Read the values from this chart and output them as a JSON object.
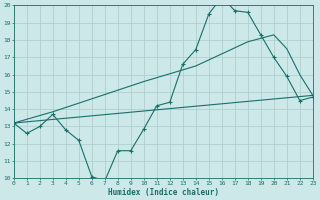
{
  "xlabel": "Humidex (Indice chaleur)",
  "bg_color": "#cce8e8",
  "grid_color": "#aacccc",
  "line_color": "#1a6e6a",
  "xmin": 0,
  "xmax": 23,
  "ymin": 10,
  "ymax": 20,
  "line1_x": [
    0,
    1,
    2,
    3,
    4,
    5,
    6,
    7,
    8,
    9,
    10,
    11,
    12,
    13,
    14,
    15,
    16,
    17,
    18,
    19,
    20,
    21,
    22,
    23
  ],
  "line1_y": [
    13.2,
    12.6,
    13.0,
    13.7,
    12.8,
    12.2,
    10.1,
    9.85,
    11.6,
    11.6,
    12.85,
    14.2,
    14.4,
    16.6,
    17.45,
    19.5,
    20.5,
    19.7,
    19.6,
    18.3,
    17.0,
    15.9,
    14.5,
    14.7
  ],
  "line2_x": [
    0,
    23
  ],
  "line2_y": [
    13.2,
    14.8
  ],
  "line3_x": [
    0,
    3,
    10,
    14,
    18,
    20,
    21,
    22,
    23
  ],
  "line3_y": [
    13.2,
    13.85,
    15.6,
    16.5,
    17.9,
    18.3,
    17.5,
    16.0,
    14.8
  ]
}
